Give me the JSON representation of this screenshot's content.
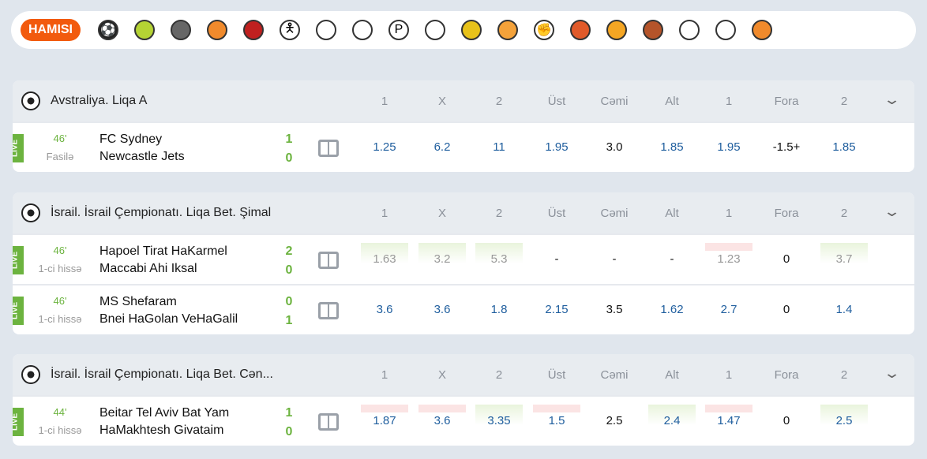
{
  "topbar": {
    "all_label": "HAMISI",
    "sports": [
      {
        "icon": "soccer-icon",
        "glyph": "⚽",
        "color": "#222"
      },
      {
        "icon": "tennis-icon",
        "glyph": "",
        "color": "#b5d334"
      },
      {
        "icon": "hockey-icon",
        "glyph": "",
        "color": "#666"
      },
      {
        "icon": "basketball-icon",
        "glyph": "",
        "color": "#f08a2c"
      },
      {
        "icon": "dota-icon",
        "glyph": "",
        "color": "#c0201f"
      },
      {
        "icon": "counter-strike-icon",
        "glyph": "🯅",
        "color": "#fff"
      },
      {
        "icon": "basketball-hoop-icon",
        "glyph": "",
        "color": "#fff"
      },
      {
        "icon": "futsal-icon",
        "glyph": "",
        "color": "#fff"
      },
      {
        "icon": "p-icon",
        "glyph": "P",
        "color": "#fff"
      },
      {
        "icon": "volleyball-icon",
        "glyph": "",
        "color": "#fff"
      },
      {
        "icon": "handball-icon",
        "glyph": "",
        "color": "#e8c21a"
      },
      {
        "icon": "table-tennis-icon",
        "glyph": "",
        "color": "#f4a23a"
      },
      {
        "icon": "hand-icon",
        "glyph": "✊",
        "color": "#fff"
      },
      {
        "icon": "boxing-icon",
        "glyph": "",
        "color": "#e05a2a"
      },
      {
        "icon": "cricket-icon",
        "glyph": "",
        "color": "#f5a623"
      },
      {
        "icon": "rugby-icon",
        "glyph": "",
        "color": "#b5542a"
      },
      {
        "icon": "baseball-icon",
        "glyph": "",
        "color": "#fff"
      },
      {
        "icon": "american-football-icon",
        "glyph": "",
        "color": "#fff"
      },
      {
        "icon": "other-sport-icon",
        "glyph": "",
        "color": "#f08a2c"
      }
    ]
  },
  "headers": [
    "1",
    "X",
    "2",
    "Üst",
    "Cəmi",
    "Alt",
    "1",
    "Fora",
    "2"
  ],
  "leagues": [
    {
      "title": "Avstraliya. Liqa A",
      "matches": [
        {
          "live": "LIVE",
          "minute": "46'",
          "period": "Fasilə",
          "team1": "FC Sydney",
          "team2": "Newcastle Jets",
          "score1": "1",
          "score2": "0",
          "odds": [
            {
              "v": "1.25"
            },
            {
              "v": "6.2"
            },
            {
              "v": "11"
            },
            {
              "v": "1.95"
            },
            {
              "v": "3.0",
              "plain": true
            },
            {
              "v": "1.85"
            },
            {
              "v": "1.95"
            },
            {
              "v": "-1.5+",
              "plain": true
            },
            {
              "v": "1.85"
            }
          ]
        }
      ]
    },
    {
      "title": "İsrail. İsrail Çempionatı. Liqa Bet. Şimal",
      "matches": [
        {
          "live": "LIVE",
          "minute": "46'",
          "period": "1-ci hissə",
          "team1": "Hapoel Tirat HaKarmel",
          "team2": "Maccabi Ahi Iksal",
          "score1": "2",
          "score2": "0",
          "odds": [
            {
              "v": "1.63",
              "susp": true,
              "trend": "up"
            },
            {
              "v": "3.2",
              "susp": true,
              "trend": "up"
            },
            {
              "v": "5.3",
              "susp": true,
              "trend": "up"
            },
            {
              "v": "-",
              "plain": true
            },
            {
              "v": "-",
              "plain": true
            },
            {
              "v": "-",
              "plain": true
            },
            {
              "v": "1.23",
              "susp": true,
              "trend": "down"
            },
            {
              "v": "0",
              "plain": true
            },
            {
              "v": "3.7",
              "susp": true,
              "trend": "up"
            }
          ]
        },
        {
          "live": "LIVE",
          "minute": "46'",
          "period": "1-ci hissə",
          "team1": "MS Shefaram",
          "team2": "Bnei HaGolan VeHaGalil",
          "score1": "0",
          "score2": "1",
          "odds": [
            {
              "v": "3.6"
            },
            {
              "v": "3.6"
            },
            {
              "v": "1.8"
            },
            {
              "v": "2.15"
            },
            {
              "v": "3.5",
              "plain": true
            },
            {
              "v": "1.62"
            },
            {
              "v": "2.7"
            },
            {
              "v": "0",
              "plain": true
            },
            {
              "v": "1.4"
            }
          ]
        }
      ]
    },
    {
      "title": "İsrail. İsrail Çempionatı. Liqa Bet. Cən...",
      "matches": [
        {
          "live": "LIVE",
          "minute": "44'",
          "period": "1-ci hissə",
          "team1": "Beitar Tel Aviv Bat Yam",
          "team2": "HaMakhtesh Givataim",
          "score1": "1",
          "score2": "0",
          "odds": [
            {
              "v": "1.87",
              "trend": "down"
            },
            {
              "v": "3.6",
              "trend": "down"
            },
            {
              "v": "3.35",
              "trend": "up"
            },
            {
              "v": "1.5",
              "trend": "down"
            },
            {
              "v": "2.5",
              "plain": true
            },
            {
              "v": "2.4",
              "trend": "up"
            },
            {
              "v": "1.47",
              "trend": "down"
            },
            {
              "v": "0",
              "plain": true
            },
            {
              "v": "2.5",
              "trend": "up"
            }
          ]
        }
      ]
    }
  ]
}
